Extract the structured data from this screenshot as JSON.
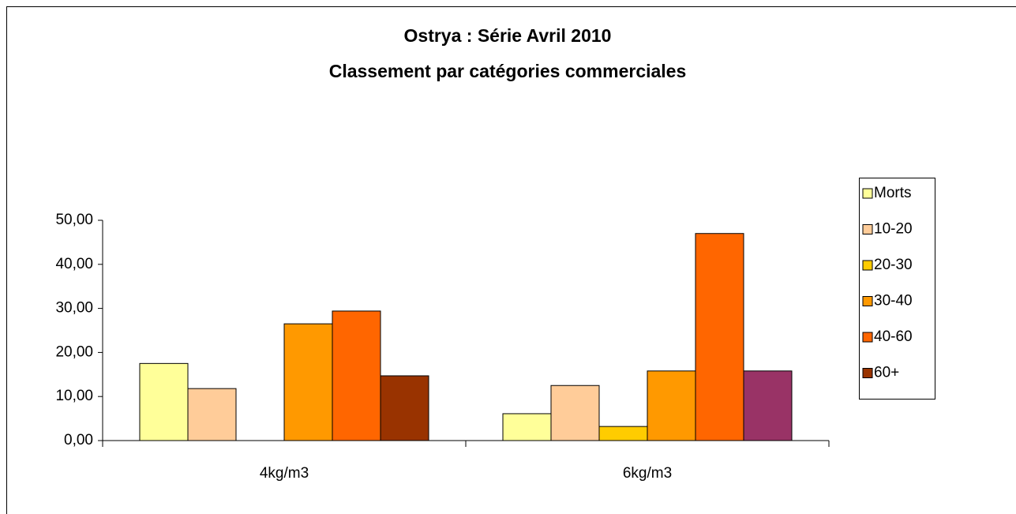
{
  "chart_data": {
    "type": "bar",
    "title": "Ostrya : Série Avril 2010",
    "subtitle": "Classement par catégories commerciales",
    "categories": [
      "4kg/m3",
      "6kg/m3"
    ],
    "series": [
      {
        "name": "Morts",
        "color": "#ffff99",
        "values": [
          17.5,
          6.1
        ]
      },
      {
        "name": "10-20",
        "color": "#ffcc99",
        "values": [
          11.8,
          12.5
        ]
      },
      {
        "name": "20-30",
        "color": "#ffcc00",
        "values": [
          null,
          3.2
        ]
      },
      {
        "name": "30-40",
        "color": "#ff9900",
        "values": [
          26.5,
          15.8
        ]
      },
      {
        "name": "40-60",
        "color": "#ff6600",
        "values": [
          29.4,
          47
        ]
      },
      {
        "name": "60+",
        "color": "#993300",
        "point_colors": [
          "#993300",
          "#993366"
        ],
        "values": [
          14.7,
          15.8
        ]
      }
    ],
    "ylim": [
      0,
      50
    ],
    "yticks": [
      {
        "value": 0,
        "label": "0,00"
      },
      {
        "value": 10,
        "label": "10,00"
      },
      {
        "value": 20,
        "label": "20,00"
      },
      {
        "value": 30,
        "label": "30,00"
      },
      {
        "value": 40,
        "label": "40,00"
      },
      {
        "value": 50,
        "label": "50,00"
      }
    ],
    "grid": false,
    "legend": "right"
  }
}
